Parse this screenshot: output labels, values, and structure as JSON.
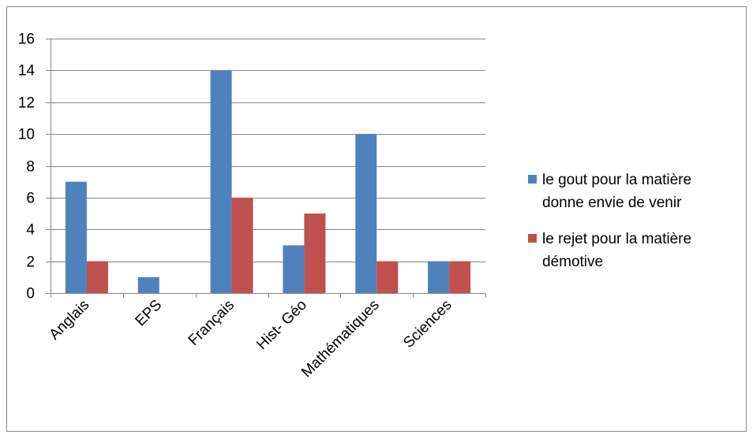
{
  "chart_data": {
    "type": "bar",
    "categories": [
      "Anglais",
      "EPS",
      "Français",
      "Hist- Géo",
      "Mathématiques",
      "Sciences"
    ],
    "series": [
      {
        "name": "le gout pour la matière donne envie de venir",
        "name_lines": [
          "le gout pour la matière",
          "donne envie de venir"
        ],
        "values": [
          7,
          1,
          14,
          3,
          10,
          2
        ],
        "color": "#4F81BD"
      },
      {
        "name": "le rejet pour la matière démotive",
        "name_lines": [
          "le rejet pour la matière",
          "démotive"
        ],
        "values": [
          2,
          0,
          6,
          5,
          2,
          2
        ],
        "color": "#C0504D"
      }
    ],
    "ylim": [
      0,
      16
    ],
    "yticks": [
      0,
      2,
      4,
      6,
      8,
      10,
      12,
      14,
      16
    ],
    "grid": true,
    "legend": "right",
    "title": "",
    "xlabel": "",
    "ylabel": ""
  },
  "colors": {
    "border": "#868686",
    "gridline": "#868686",
    "axis": "#868686"
  }
}
